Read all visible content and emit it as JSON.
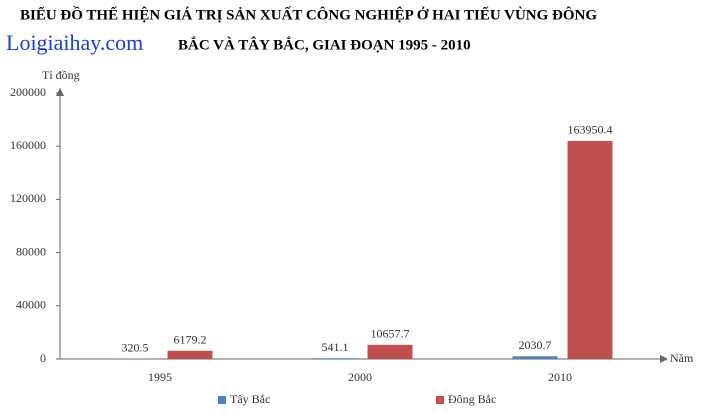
{
  "chart_data": {
    "type": "bar",
    "title_lines": [
      "BIỂU ĐỒ THỂ HIỆN GIÁ TRỊ SẢN XUẤT CÔNG NGHIỆP Ở HAI TIỂU VÙNG ĐÔNG",
      "BẮC VÀ TÂY BẮC, GIAI ĐOẠN 1995 - 2010"
    ],
    "watermark": "Loigiaihay.com",
    "y_label": "Tỉ đồng",
    "x_label": "Năm",
    "categories": [
      "1995",
      "2000",
      "2010"
    ],
    "series": [
      {
        "name": "Tây Bắc",
        "color": "#4f81bd",
        "values": [
          320.5,
          541.1,
          2030.7
        ]
      },
      {
        "name": "Đông Bắc",
        "color": "#c0504d",
        "values": [
          6179.2,
          10657.7,
          163950.4
        ]
      }
    ],
    "ylim": [
      0,
      200000
    ],
    "yticks": [
      0,
      40000,
      80000,
      120000,
      160000,
      200000
    ],
    "legend": "bottom"
  }
}
